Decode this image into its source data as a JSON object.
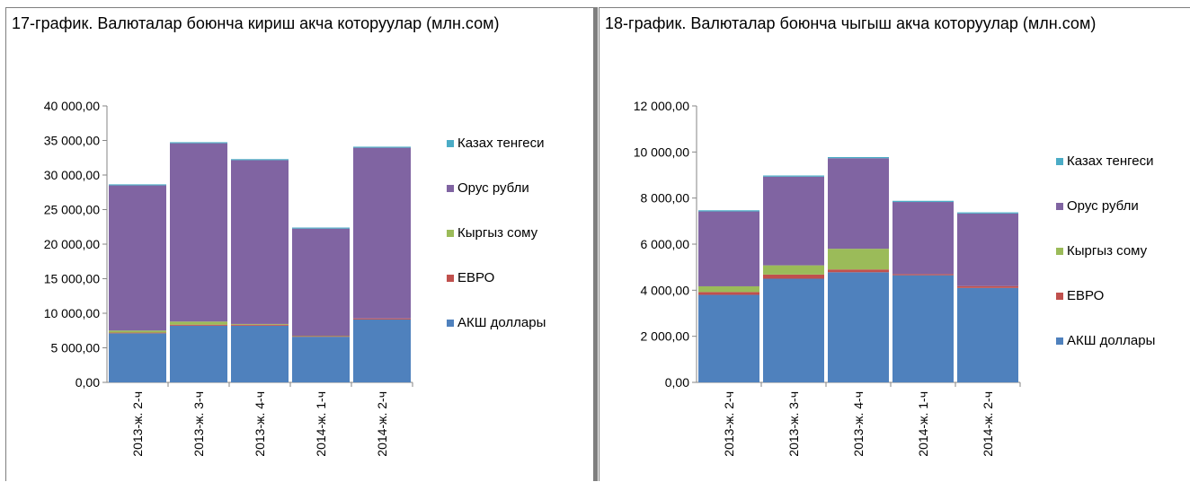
{
  "colors": {
    "usd": "#4f81bd",
    "euro": "#c0504d",
    "som": "#9bbb59",
    "rub": "#8064a2",
    "kzt": "#4bacc6",
    "axis": "#868686",
    "border": "#7f7f7f"
  },
  "legend": [
    "Казах тенгеси",
    "Орус рубли",
    "Кыргыз сому",
    "ЕВРО",
    "АКШ доллары"
  ],
  "chart_data": [
    {
      "type": "bar",
      "stacked": true,
      "title": "17-график. Валюталар боюнча кириш акча которуулар (млн.сом)",
      "categories": [
        "2013-ж. 2-ч",
        "2013-ж. 3-ч",
        "2013-ж. 4-ч",
        "2014-ж. 1-ч",
        "2014-ж. 2-ч"
      ],
      "ylim": [
        0,
        40000
      ],
      "yticks": [
        "0,00",
        "5 000,00",
        "10 000,00",
        "15 000,00",
        "20 000,00",
        "25 000,00",
        "30 000,00",
        "35 000,00",
        "40 000,00"
      ],
      "ytick_values": [
        0,
        5000,
        10000,
        15000,
        20000,
        25000,
        30000,
        35000,
        40000
      ],
      "legend_position": "right",
      "series": [
        {
          "name": "АКШ доллары",
          "key": "usd",
          "values": [
            7100,
            8200,
            8200,
            6600,
            9100
          ]
        },
        {
          "name": "ЕВРО",
          "key": "euro",
          "values": [
            100,
            150,
            150,
            100,
            150
          ]
        },
        {
          "name": "Кыргыз сому",
          "key": "som",
          "values": [
            300,
            450,
            100,
            50,
            0
          ]
        },
        {
          "name": "Орус рубли",
          "key": "rub",
          "values": [
            21000,
            25800,
            23700,
            15500,
            24700
          ]
        },
        {
          "name": "Казах тенгеси",
          "key": "kzt",
          "values": [
            150,
            150,
            150,
            150,
            150
          ]
        }
      ]
    },
    {
      "type": "bar",
      "stacked": true,
      "title": "18-график. Валюталар боюнча чыгыш акча которуулар (млн.сом)",
      "categories": [
        "2013-ж. 2-ч",
        "2013-ж. 3-ч",
        "2013-ж. 4-ч",
        "2014-ж. 1-ч",
        "2014-ж. 2-ч"
      ],
      "ylim": [
        0,
        12000
      ],
      "yticks": [
        "0,00",
        "2 000,00",
        "4 000,00",
        "6 000,00",
        "8 000,00",
        "10 000,00",
        "12 000,00"
      ],
      "ytick_values": [
        0,
        2000,
        4000,
        6000,
        8000,
        10000,
        12000
      ],
      "legend_position": "right",
      "series": [
        {
          "name": "АКШ доллары",
          "key": "usd",
          "values": [
            3800,
            4500,
            4780,
            4650,
            4100
          ]
        },
        {
          "name": "ЕВРО",
          "key": "euro",
          "values": [
            120,
            180,
            120,
            50,
            80
          ]
        },
        {
          "name": "Кыргыз сому",
          "key": "som",
          "values": [
            250,
            400,
            900,
            0,
            0
          ]
        },
        {
          "name": "Орус рубли",
          "key": "rub",
          "values": [
            3250,
            3850,
            3930,
            3130,
            3150
          ]
        },
        {
          "name": "Казах тенгеси",
          "key": "kzt",
          "values": [
            50,
            50,
            50,
            50,
            50
          ]
        }
      ]
    }
  ]
}
